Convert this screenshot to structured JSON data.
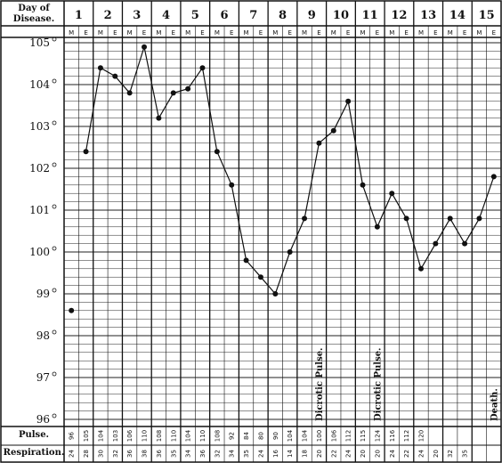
{
  "chart_data": {
    "type": "line",
    "header_label_line1": "Day of",
    "header_label_line2": "Disease.",
    "days": [
      "1",
      "2",
      "3",
      "4",
      "5",
      "6",
      "7",
      "8",
      "9",
      "10",
      "11",
      "12",
      "13",
      "14",
      "15"
    ],
    "slot_labels": [
      "M",
      "E"
    ],
    "y_ticks": [
      {
        "label": "105",
        "value": 105
      },
      {
        "label": "104",
        "value": 104
      },
      {
        "label": "103",
        "value": 103
      },
      {
        "label": "102",
        "value": 102
      },
      {
        "label": "101",
        "value": 101
      },
      {
        "label": "100",
        "value": 100
      },
      {
        "label": "99",
        "value": 99
      },
      {
        "label": "98",
        "value": 98
      },
      {
        "label": "97",
        "value": 97
      },
      {
        "label": "96",
        "value": 96
      }
    ],
    "ylim": [
      96,
      105
    ],
    "temperature": [
      98.6,
      102.4,
      104.4,
      104.2,
      103.8,
      104.9,
      103.2,
      103.8,
      103.9,
      104.4,
      102.4,
      101.6,
      99.8,
      99.4,
      99.0,
      100.0,
      100.8,
      102.6,
      102.9,
      103.6,
      101.6,
      100.6,
      101.4,
      100.8,
      99.6,
      100.2,
      100.8,
      100.2,
      100.8,
      101.8
    ],
    "pulse_label": "Pulse.",
    "respiration_label": "Respiration.",
    "pulse": [
      "96",
      "105",
      "104",
      "103",
      "106",
      "110",
      "108",
      "110",
      "104",
      "110",
      "108",
      "92",
      "84",
      "80",
      "90",
      "104",
      "104",
      "100",
      "106",
      "112",
      "115",
      "124",
      "116",
      "112",
      "120",
      "",
      "",
      "",
      "",
      ""
    ],
    "respiration": [
      "24",
      "28",
      "30",
      "32",
      "36",
      "38",
      "36",
      "35",
      "34",
      "36",
      "32",
      "34",
      "35",
      "24",
      "16",
      "14",
      "18",
      "20",
      "22",
      "24",
      "20",
      "20",
      "24",
      "22",
      "24",
      "20",
      "32",
      "35",
      "",
      ""
    ],
    "annotations": [
      {
        "text": "Dicrotic Pulse.",
        "slot": 17
      },
      {
        "text": "Dicrotic Pulse.",
        "slot": 21
      },
      {
        "text": "Death.",
        "slot": 29
      }
    ]
  }
}
